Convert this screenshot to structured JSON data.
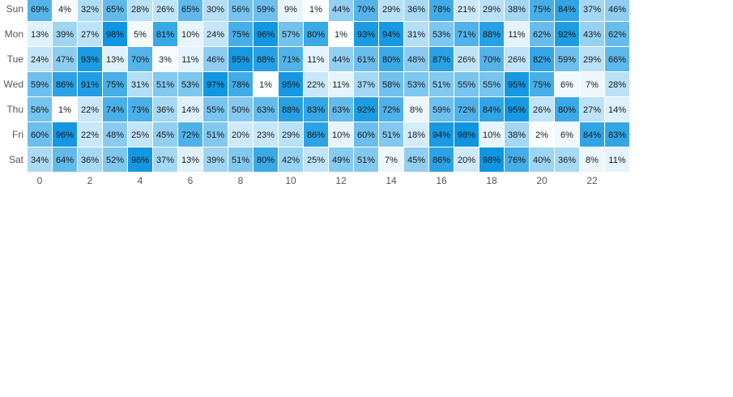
{
  "chart_data": {
    "type": "heatmap",
    "value_suffix": "%",
    "rows": [
      "Sun",
      "Mon",
      "Tue",
      "Wed",
      "Thu",
      "Fri",
      "Sat"
    ],
    "columns": [
      0,
      1,
      2,
      3,
      4,
      5,
      6,
      7,
      8,
      9,
      10,
      11,
      12,
      13,
      14,
      15,
      16,
      17,
      18,
      19,
      20,
      21,
      22,
      23
    ],
    "x_tick_labels": [
      "0",
      "2",
      "4",
      "6",
      "8",
      "10",
      "12",
      "14",
      "16",
      "18",
      "20",
      "22"
    ],
    "values": [
      [
        69,
        4,
        32,
        65,
        28,
        26,
        65,
        30,
        56,
        59,
        9,
        1,
        44,
        70,
        29,
        36,
        78,
        21,
        29,
        38,
        75,
        84,
        37,
        46
      ],
      [
        13,
        39,
        27,
        98,
        5,
        81,
        10,
        24,
        75,
        96,
        57,
        80,
        1,
        93,
        94,
        31,
        53,
        71,
        88,
        11,
        62,
        92,
        43,
        62
      ],
      [
        24,
        47,
        93,
        13,
        70,
        3,
        11,
        46,
        95,
        88,
        71,
        11,
        44,
        61,
        80,
        48,
        87,
        26,
        70,
        26,
        82,
        59,
        29,
        66
      ],
      [
        59,
        86,
        91,
        75,
        31,
        51,
        53,
        97,
        78,
        1,
        95,
        22,
        11,
        37,
        58,
        53,
        51,
        55,
        55,
        95,
        75,
        6,
        7,
        28
      ],
      [
        56,
        1,
        22,
        74,
        73,
        36,
        14,
        55,
        50,
        63,
        88,
        83,
        63,
        92,
        72,
        8,
        59,
        72,
        84,
        95,
        26,
        80,
        27,
        14
      ],
      [
        60,
        96,
        22,
        48,
        25,
        45,
        72,
        51,
        20,
        23,
        29,
        86,
        10,
        60,
        51,
        18,
        94,
        98,
        10,
        38,
        2,
        6,
        84,
        83
      ],
      [
        34,
        64,
        36,
        52,
        96,
        37,
        13,
        39,
        51,
        80,
        42,
        25,
        49,
        51,
        7,
        45,
        86,
        20,
        98,
        76,
        40,
        36,
        8,
        11
      ]
    ],
    "color_min": "#ffffff",
    "color_max": "#0a93e0",
    "grid": false,
    "legend": "none"
  }
}
